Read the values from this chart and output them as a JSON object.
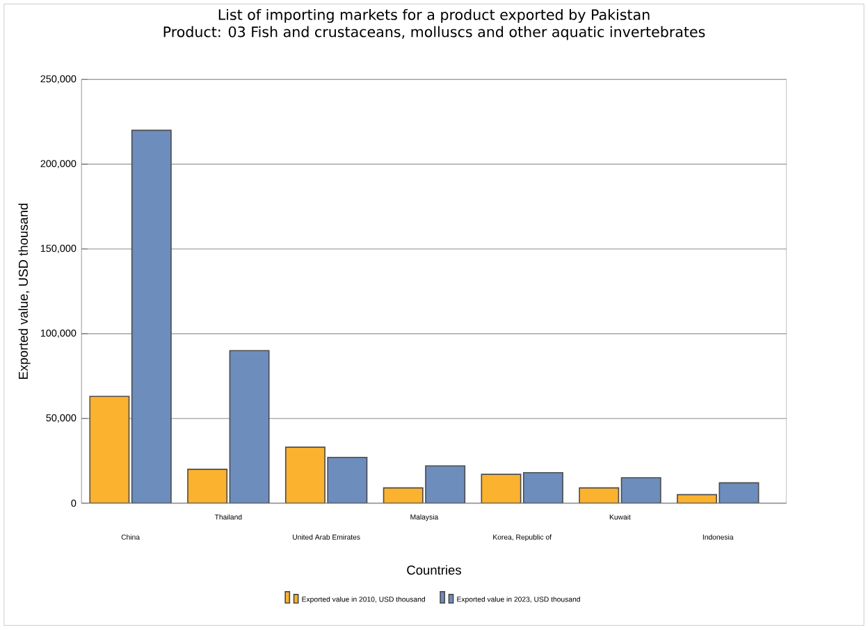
{
  "chart_data": {
    "type": "bar",
    "title": "List of importing markets for a product exported by Pakistan",
    "subtitle": "Product: 03 Fish and crustaceans, molluscs and other aquatic invertebrates",
    "xlabel": "Countries",
    "ylabel": "Exported value, USD thousand",
    "categories": [
      "China",
      "Thailand",
      "United Arab Emirates",
      "Malaysia",
      "Korea, Republic of",
      "Kuwait",
      "Indonesia"
    ],
    "series": [
      {
        "name": "Exported value in 2010, USD thousand",
        "color": "#fbb22f",
        "values": [
          63000,
          20000,
          33000,
          9000,
          17000,
          9000,
          5000
        ]
      },
      {
        "name": "Exported value in 2023, USD thousand",
        "color": "#6d8dbd",
        "values": [
          220000,
          90000,
          27000,
          22000,
          18000,
          15000,
          12000
        ]
      }
    ],
    "ylim": [
      0,
      250000
    ],
    "yticks": [
      0,
      {
        "value": 50000,
        "label": "50,000"
      },
      {
        "value": 100000,
        "label": "100,000"
      },
      {
        "value": 150000,
        "label": "150,000"
      },
      {
        "value": 200000,
        "label": "200,000"
      },
      {
        "value": 250000,
        "label": "250,000"
      }
    ],
    "grid": "y",
    "legend": "bottom"
  }
}
